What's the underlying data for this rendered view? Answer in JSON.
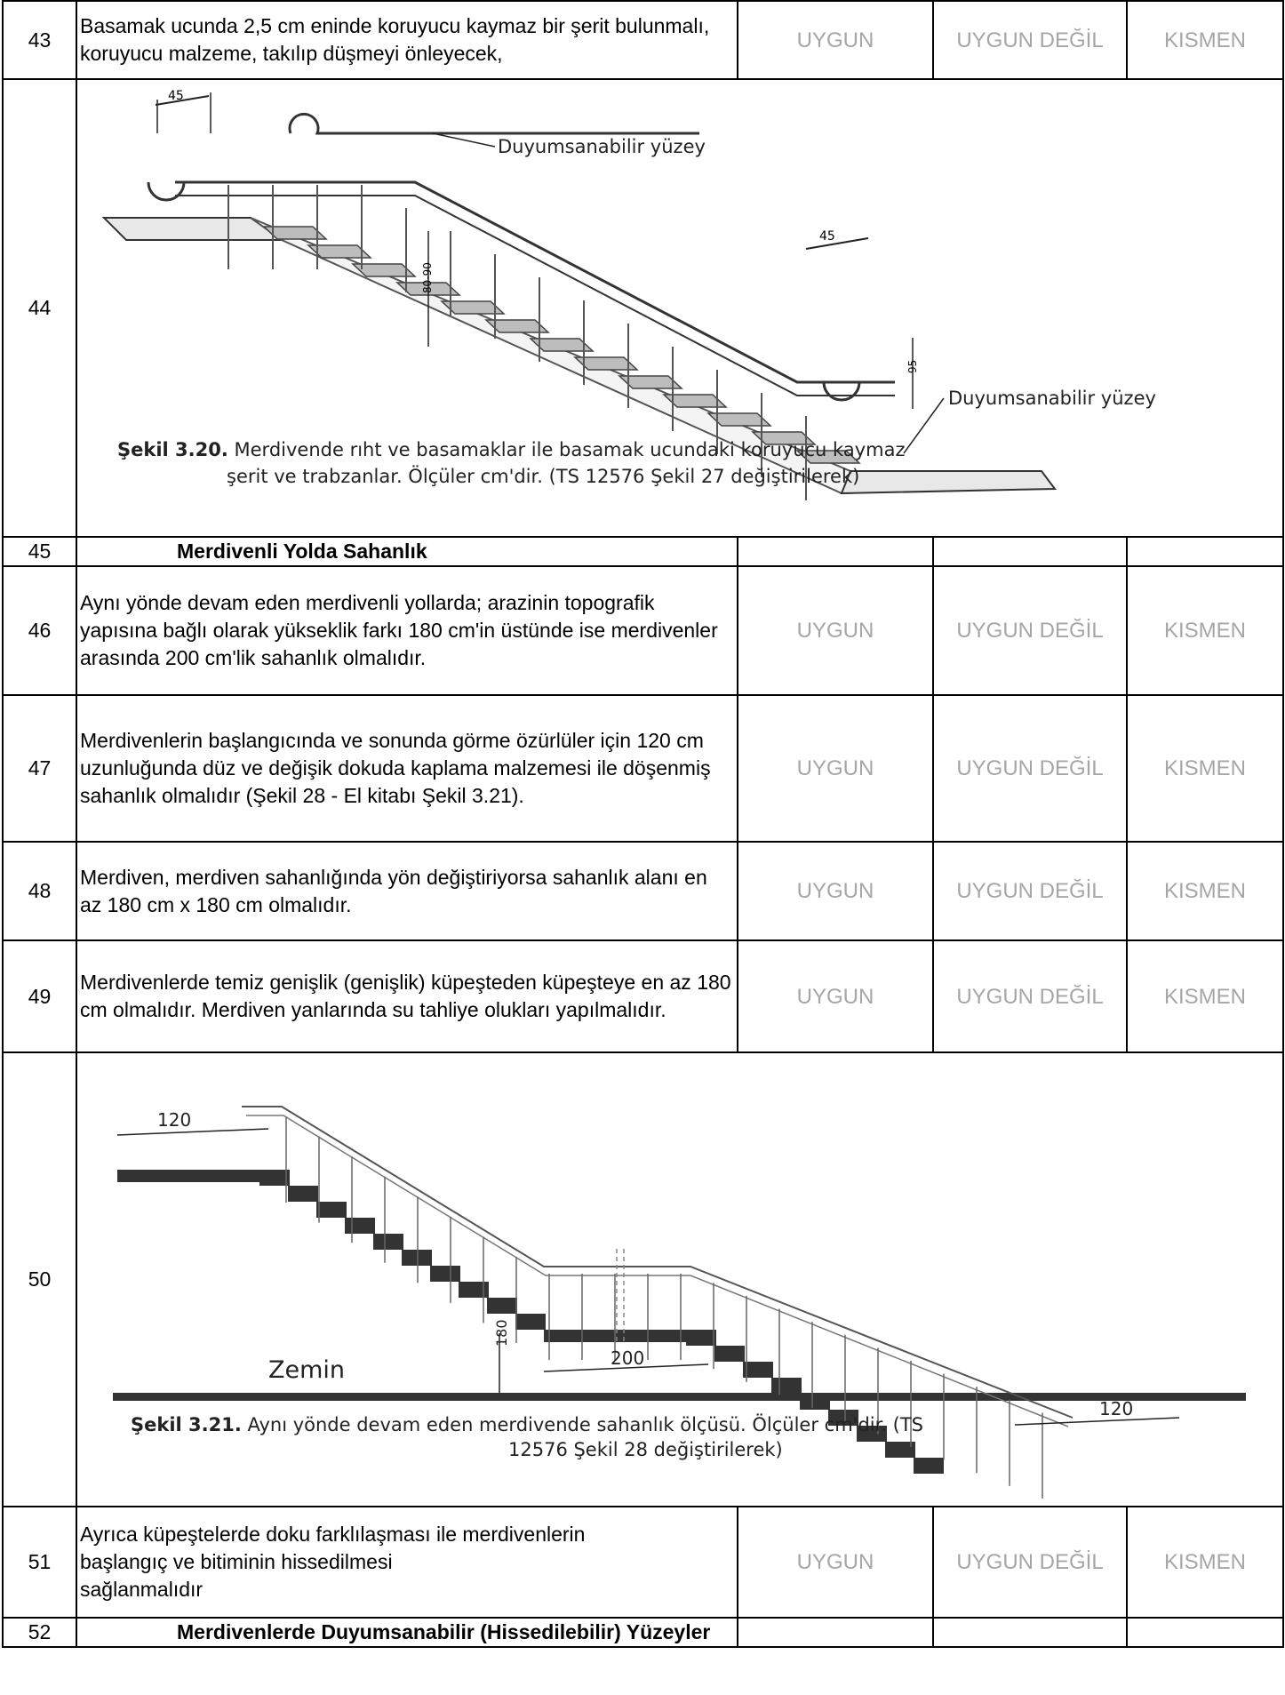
{
  "options": {
    "uygun": "UYGUN",
    "uygun_degil": "UYGUN DEĞİL",
    "kismen": "KISMEN"
  },
  "rows": {
    "r43": {
      "num": "43",
      "text": "Basamak ucunda 2,5 cm eninde koruyucu kaymaz bir şerit bulunmalı, koruyucu malzeme, takılıp düşmeyi önleyecek,"
    },
    "r44": {
      "num": "44",
      "figure": {
        "label_top": "Duyumsanabilir yüzey",
        "label_bottom": "Duyumsanabilir yüzey",
        "dim_45_left": "45",
        "dim_45_right": "45",
        "dim_rise": "80-90",
        "dim_95": "95",
        "caption_bold": "Şekil 3.20.",
        "caption_line1": " Merdivende rıht ve basamaklar ile basamak ucundaki koruyucu kaymaz",
        "caption_line2": "şerit ve trabzanlar. Ölçüler cm'dir. (TS 12576 Şekil 27 değiştirilerek)"
      }
    },
    "r45": {
      "num": "45",
      "title": "Merdivenli Yolda Sahanlık"
    },
    "r46": {
      "num": "46",
      "text": "Aynı yönde devam eden merdivenli yollarda; arazinin topografik yapısına bağlı olarak yükseklik farkı 180 cm'in üstünde ise merdivenler arasında 200 cm'lik sahanlık olmalıdır."
    },
    "r47": {
      "num": "47",
      "text": "Merdivenlerin başlangıcında ve sonunda görme özürlüler için 120 cm uzunluğunda düz ve değişik dokuda kaplama malzemesi ile döşenmiş sahanlık olmalıdır (Şekil 28 - El kitabı Şekil 3.21)."
    },
    "r48": {
      "num": "48",
      "text": "Merdiven, merdiven sahanlığında yön değiştiriyorsa sahanlık alanı en az 180 cm x 180 cm olmalıdır."
    },
    "r49": {
      "num": "49",
      "text": "Merdivenlerde temiz genişlik (genişlik) küpeşteden küpeşteye en az 180 cm olmalıdır. Merdiven yanlarında su tahliye olukları yapılmalıdır."
    },
    "r50": {
      "num": "50",
      "figure": {
        "dim_120_left": "120",
        "dim_200": "200",
        "dim_180": "180",
        "dim_120_right": "120",
        "ground_label": "Zemin",
        "caption_bold": "Şekil 3.21.",
        "caption_line1": " Aynı yönde devam eden merdivende sahanlık ölçüsü. Ölçüler cm'dir. (TS",
        "caption_line2": "12576 Şekil 28 değiştirilerek)"
      }
    },
    "r51": {
      "num": "51",
      "line1": "Ayrıca küpeştelerde doku farklılaşması ile merdivenlerin",
      "line2": "başlangıç ve bitiminin hissedilmesi",
      "line3": "sağlanmalıdır"
    },
    "r52": {
      "num": "52",
      "title": "Merdivenlerde Duyumsanabilir (Hissedilebilir) Yüzeyler"
    }
  }
}
